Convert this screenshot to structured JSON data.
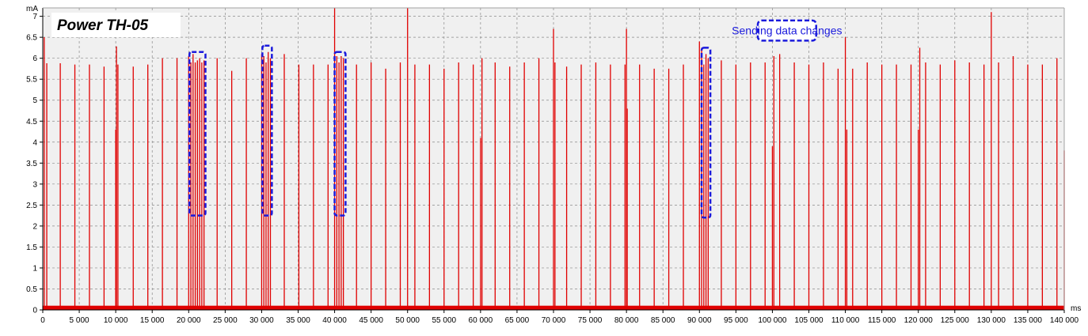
{
  "chart_data": {
    "type": "line",
    "title": "Power TH-05",
    "xlabel": "ms",
    "ylabel": "mA",
    "xlim": [
      0,
      140000
    ],
    "ylim": [
      0,
      7.2
    ],
    "grid": true,
    "colors": {
      "series": "#e00000",
      "box": "#1a1adc",
      "plot_bg": "#f0f0f0",
      "grid": "#8a8a8a"
    },
    "x_ticks": [
      {
        "v": 0,
        "label": "0"
      },
      {
        "v": 5000,
        "label": "5 000"
      },
      {
        "v": 10000,
        "label": "10 000"
      },
      {
        "v": 15000,
        "label": "15 000"
      },
      {
        "v": 20000,
        "label": "20 000"
      },
      {
        "v": 25000,
        "label": "25 000"
      },
      {
        "v": 30000,
        "label": "30 000"
      },
      {
        "v": 35000,
        "label": "35 000"
      },
      {
        "v": 40000,
        "label": "40 000"
      },
      {
        "v": 45000,
        "label": "45 000"
      },
      {
        "v": 50000,
        "label": "50 000"
      },
      {
        "v": 55000,
        "label": "55 000"
      },
      {
        "v": 60000,
        "label": "60 000"
      },
      {
        "v": 65000,
        "label": "65 000"
      },
      {
        "v": 70000,
        "label": "70 000"
      },
      {
        "v": 75000,
        "label": "75 000"
      },
      {
        "v": 80000,
        "label": "80 000"
      },
      {
        "v": 85000,
        "label": "85 000"
      },
      {
        "v": 90000,
        "label": "90 000"
      },
      {
        "v": 95000,
        "label": "95 000"
      },
      {
        "v": 100000,
        "label": "100 000"
      },
      {
        "v": 105000,
        "label": "105 000"
      },
      {
        "v": 110000,
        "label": "110 000"
      },
      {
        "v": 115000,
        "label": "115 000"
      },
      {
        "v": 120000,
        "label": "120 000"
      },
      {
        "v": 125000,
        "label": "125 000"
      },
      {
        "v": 130000,
        "label": "130 000"
      },
      {
        "v": 135000,
        "label": "135 000"
      },
      {
        "v": 140000,
        "label": "140 000"
      }
    ],
    "y_ticks": [
      {
        "v": 0,
        "label": "0"
      },
      {
        "v": 0.5,
        "label": "0.5"
      },
      {
        "v": 1,
        "label": "1"
      },
      {
        "v": 1.5,
        "label": "1.5"
      },
      {
        "v": 2,
        "label": "2"
      },
      {
        "v": 2.5,
        "label": "2.5"
      },
      {
        "v": 3,
        "label": "3"
      },
      {
        "v": 3.5,
        "label": "3.5"
      },
      {
        "v": 4,
        "label": "4"
      },
      {
        "v": 4.5,
        "label": "4.5"
      },
      {
        "v": 5,
        "label": "5"
      },
      {
        "v": 5.5,
        "label": "5.5"
      },
      {
        "v": 6,
        "label": "6"
      },
      {
        "v": 6.5,
        "label": "6.5"
      },
      {
        "v": 7,
        "label": "7"
      }
    ],
    "series": [
      {
        "baseline": 0.05,
        "peaks": [
          {
            "x": 200,
            "y": 6.5
          },
          {
            "x": 550,
            "y": 5.88
          },
          {
            "x": 2400,
            "y": 5.88
          },
          {
            "x": 4400,
            "y": 5.85
          },
          {
            "x": 6400,
            "y": 5.85
          },
          {
            "x": 8400,
            "y": 5.8
          },
          {
            "x": 10000,
            "y": 4.3
          },
          {
            "x": 10100,
            "y": 6.28
          },
          {
            "x": 10300,
            "y": 5.85
          },
          {
            "x": 12400,
            "y": 5.8
          },
          {
            "x": 14400,
            "y": 5.85
          },
          {
            "x": 16400,
            "y": 6.0
          },
          {
            "x": 18400,
            "y": 6.0
          },
          {
            "x": 20000,
            "y": 6.05
          },
          {
            "x": 20300,
            "y": 5.9
          },
          {
            "x": 20600,
            "y": 6.1
          },
          {
            "x": 20900,
            "y": 5.9
          },
          {
            "x": 21200,
            "y": 5.95
          },
          {
            "x": 21500,
            "y": 6.0
          },
          {
            "x": 21800,
            "y": 5.9
          },
          {
            "x": 22100,
            "y": 5.95
          },
          {
            "x": 23900,
            "y": 6.0
          },
          {
            "x": 25900,
            "y": 5.7
          },
          {
            "x": 27900,
            "y": 6.0
          },
          {
            "x": 30000,
            "y": 6.1
          },
          {
            "x": 30300,
            "y": 6.05
          },
          {
            "x": 30600,
            "y": 5.9
          },
          {
            "x": 30900,
            "y": 6.15
          },
          {
            "x": 31200,
            "y": 6.0
          },
          {
            "x": 33100,
            "y": 6.1
          },
          {
            "x": 35100,
            "y": 5.85
          },
          {
            "x": 37100,
            "y": 5.85
          },
          {
            "x": 39100,
            "y": 5.85
          },
          {
            "x": 40000,
            "y": 7.2
          },
          {
            "x": 40300,
            "y": 6.05
          },
          {
            "x": 40600,
            "y": 5.9
          },
          {
            "x": 40900,
            "y": 6.05
          },
          {
            "x": 41200,
            "y": 6.0
          },
          {
            "x": 43000,
            "y": 5.85
          },
          {
            "x": 45000,
            "y": 5.9
          },
          {
            "x": 47000,
            "y": 5.75
          },
          {
            "x": 49000,
            "y": 5.9
          },
          {
            "x": 50000,
            "y": 7.2
          },
          {
            "x": 51000,
            "y": 5.85
          },
          {
            "x": 53000,
            "y": 5.85
          },
          {
            "x": 55000,
            "y": 5.75
          },
          {
            "x": 57000,
            "y": 5.9
          },
          {
            "x": 59000,
            "y": 5.85
          },
          {
            "x": 60000,
            "y": 4.1
          },
          {
            "x": 60200,
            "y": 6.0
          },
          {
            "x": 62000,
            "y": 5.9
          },
          {
            "x": 64000,
            "y": 5.8
          },
          {
            "x": 66000,
            "y": 5.9
          },
          {
            "x": 68000,
            "y": 6.0
          },
          {
            "x": 70000,
            "y": 6.7
          },
          {
            "x": 70200,
            "y": 5.9
          },
          {
            "x": 71800,
            "y": 5.8
          },
          {
            "x": 73800,
            "y": 5.85
          },
          {
            "x": 75800,
            "y": 5.9
          },
          {
            "x": 77800,
            "y": 5.85
          },
          {
            "x": 79800,
            "y": 5.85
          },
          {
            "x": 80000,
            "y": 6.7
          },
          {
            "x": 80100,
            "y": 4.8
          },
          {
            "x": 81800,
            "y": 5.85
          },
          {
            "x": 83800,
            "y": 5.75
          },
          {
            "x": 85800,
            "y": 5.75
          },
          {
            "x": 87800,
            "y": 5.85
          },
          {
            "x": 90000,
            "y": 6.4
          },
          {
            "x": 90300,
            "y": 6.25
          },
          {
            "x": 90600,
            "y": 5.85
          },
          {
            "x": 90900,
            "y": 6.1
          },
          {
            "x": 91200,
            "y": 6.0
          },
          {
            "x": 93000,
            "y": 5.95
          },
          {
            "x": 95000,
            "y": 5.85
          },
          {
            "x": 97000,
            "y": 5.9
          },
          {
            "x": 99000,
            "y": 5.9
          },
          {
            "x": 100000,
            "y": 3.9
          },
          {
            "x": 100200,
            "y": 6.05
          },
          {
            "x": 101000,
            "y": 6.1
          },
          {
            "x": 103000,
            "y": 5.9
          },
          {
            "x": 105000,
            "y": 5.85
          },
          {
            "x": 107000,
            "y": 5.9
          },
          {
            "x": 109000,
            "y": 5.75
          },
          {
            "x": 110000,
            "y": 6.5
          },
          {
            "x": 110200,
            "y": 4.3
          },
          {
            "x": 111000,
            "y": 5.75
          },
          {
            "x": 113000,
            "y": 5.9
          },
          {
            "x": 115000,
            "y": 5.85
          },
          {
            "x": 117000,
            "y": 5.85
          },
          {
            "x": 119000,
            "y": 5.85
          },
          {
            "x": 120000,
            "y": 4.3
          },
          {
            "x": 120200,
            "y": 6.25
          },
          {
            "x": 121000,
            "y": 5.9
          },
          {
            "x": 123000,
            "y": 5.85
          },
          {
            "x": 125000,
            "y": 5.95
          },
          {
            "x": 127000,
            "y": 5.9
          },
          {
            "x": 129000,
            "y": 5.85
          },
          {
            "x": 130000,
            "y": 7.1
          },
          {
            "x": 131000,
            "y": 5.9
          },
          {
            "x": 133000,
            "y": 6.05
          },
          {
            "x": 135000,
            "y": 5.85
          },
          {
            "x": 137000,
            "y": 5.85
          },
          {
            "x": 139000,
            "y": 6.0
          },
          {
            "x": 140000,
            "y": 3.8
          }
        ]
      }
    ],
    "annotations": [
      {
        "type": "box",
        "x0": 20100,
        "x1": 22300,
        "y0": 2.25,
        "y1": 6.15
      },
      {
        "type": "box",
        "x0": 30100,
        "x1": 31400,
        "y0": 2.25,
        "y1": 6.3
      },
      {
        "type": "box",
        "x0": 40000,
        "x1": 41500,
        "y0": 2.25,
        "y1": 6.15
      },
      {
        "type": "box",
        "x0": 90300,
        "x1": 91500,
        "y0": 2.2,
        "y1": 6.25
      },
      {
        "type": "label",
        "text": "Sending data changes",
        "x0": 98000,
        "x1": 106000,
        "y0": 6.42,
        "y1": 6.9
      }
    ]
  }
}
